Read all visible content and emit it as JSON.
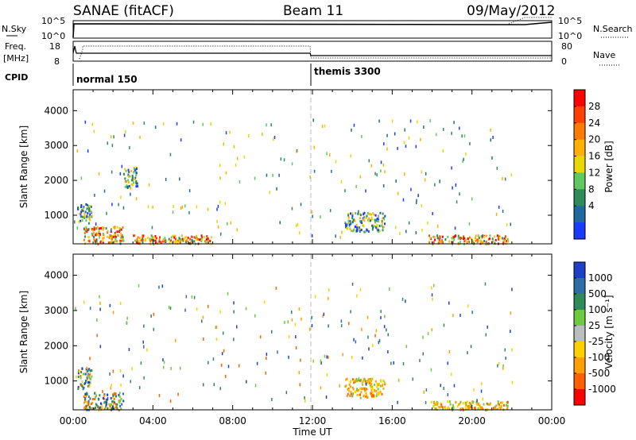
{
  "header": {
    "title": "SANAE (fitACF)",
    "beam": "Beam 11",
    "date": "09/May/2012"
  },
  "top_panels": {
    "nsky": {
      "label": "N.Sky",
      "ticks_left": [
        "10^5",
        "10^0"
      ],
      "ticks_right": [
        "10^5",
        "10^0"
      ],
      "right_label": "N.Search"
    },
    "freq": {
      "label_line1": "Freq.",
      "label_line2": "[MHz]",
      "ticks_left": [
        "18",
        "8"
      ],
      "ticks_right": [
        "80",
        "0"
      ],
      "right_label": "Nave"
    },
    "cpid": {
      "label": "CPID",
      "modes": [
        "normal 150",
        "themis 3300"
      ],
      "switch_time": "12:00"
    }
  },
  "chart_data": [
    {
      "type": "heatmap",
      "name": "Power",
      "ylabel": "Slant Range [km]",
      "ylim": [
        180,
        4600
      ],
      "yticks": [
        "1000",
        "2000",
        "3000",
        "4000"
      ],
      "xlabel": "",
      "colorbar": {
        "label": "Power [dB]",
        "ticks": [
          "28",
          "24",
          "20",
          "16",
          "12",
          "8",
          "4"
        ],
        "colors": [
          "#ff0000",
          "#ff4000",
          "#ff7a00",
          "#ffb000",
          "#e8d800",
          "#60c860",
          "#2e8b57",
          "#1e6aa0",
          "#1a3aff"
        ]
      },
      "echo_regions": [
        {
          "x": [
            0.2,
            0.9
          ],
          "y": [
            800,
            1400
          ],
          "level": "mid"
        },
        {
          "x": [
            0.5,
            2.5
          ],
          "y": [
            200,
            700
          ],
          "level": "high"
        },
        {
          "x": [
            2.5,
            3.2
          ],
          "y": [
            1800,
            2400
          ],
          "level": "mid"
        },
        {
          "x": [
            3.0,
            7.0
          ],
          "y": [
            200,
            450
          ],
          "level": "high"
        },
        {
          "x": [
            13.6,
            15.6
          ],
          "y": [
            550,
            1100
          ],
          "level": "mid"
        },
        {
          "x": [
            17.8,
            21.8
          ],
          "y": [
            200,
            450
          ],
          "level": "high"
        }
      ]
    },
    {
      "type": "heatmap",
      "name": "Velocity",
      "ylabel": "Slant Range [km]",
      "ylim": [
        180,
        4600
      ],
      "yticks": [
        "1000",
        "2000",
        "3000",
        "4000"
      ],
      "xlabel": "Time UT",
      "xticks": [
        "00:00",
        "04:00",
        "08:00",
        "12:00",
        "16:00",
        "20:00",
        "00:00"
      ],
      "colorbar": {
        "label": "Velocity [m s⁻¹]",
        "ticks": [
          "1000",
          "500",
          "100",
          "25",
          "-25",
          "-100",
          "-500",
          "-1000"
        ],
        "colors": [
          "#1e40c8",
          "#2e6ea8",
          "#2e8b57",
          "#6ccb40",
          "#bdbdbd",
          "#ffd000",
          "#ffa000",
          "#ff6000",
          "#ff0000"
        ]
      },
      "echo_regions": [
        {
          "x": [
            0.2,
            0.9
          ],
          "y": [
            800,
            1400
          ],
          "level": "mixed"
        },
        {
          "x": [
            0.5,
            2.5
          ],
          "y": [
            200,
            700
          ],
          "level": "mixed"
        },
        {
          "x": [
            13.6,
            15.6
          ],
          "y": [
            550,
            1100
          ],
          "level": "negative"
        },
        {
          "x": [
            17.8,
            21.8
          ],
          "y": [
            200,
            450
          ],
          "level": "negative"
        }
      ]
    }
  ]
}
